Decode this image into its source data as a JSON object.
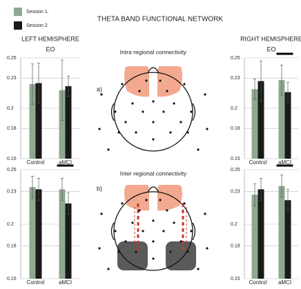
{
  "title": "THETA BAND FUNCTIONAL NETWORK",
  "panels": [
    {
      "label": "a)",
      "title": "Intra regional connectivity"
    },
    {
      "label": "b)",
      "title": "Inter regional connectivity"
    }
  ],
  "chart_data": [
    {
      "type": "bar",
      "title": "LEFT HEMISPHERE",
      "subtitle": "EO",
      "categories": [
        "Control",
        "aMCI"
      ],
      "series": [
        {
          "name": "Session 1.",
          "color": "#8fa88f",
          "values": [
            0.224,
            0.218
          ],
          "errors": [
            0.02,
            0.03
          ]
        },
        {
          "name": "Session 2.",
          "color": "#1a1a1a",
          "values": [
            0.225,
            0.222
          ],
          "errors": [
            0.02,
            0.01
          ]
        }
      ],
      "ylim": [
        0.15,
        0.25
      ],
      "yticks": [
        0.15,
        0.18,
        0.2,
        0.23,
        0.25
      ],
      "grid": true,
      "significance": [
        false,
        false
      ]
    },
    {
      "type": "bar",
      "title": "RIGHT HEMISPHERE",
      "subtitle": "EO",
      "categories": [
        "Control",
        "aMCI"
      ],
      "series": [
        {
          "color": "#8fa88f",
          "values": [
            0.219,
            0.228
          ],
          "errors": [
            0.01,
            0.015
          ]
        },
        {
          "color": "#1a1a1a",
          "values": [
            0.227,
            0.216
          ],
          "errors": [
            0.02,
            0.01
          ]
        }
      ],
      "ylim": [
        0.15,
        0.25
      ],
      "yticks": [
        0.15,
        0.18,
        0.2,
        0.23,
        0.25
      ],
      "grid": true,
      "significance": [
        false,
        true
      ]
    },
    {
      "type": "bar",
      "categories": [
        "Control",
        "aMCI"
      ],
      "series": [
        {
          "color": "#8fa88f",
          "values": [
            0.234,
            0.232
          ],
          "errors": [
            0.01,
            0.01
          ]
        },
        {
          "color": "#1a1a1a",
          "values": [
            0.232,
            0.219
          ],
          "errors": [
            0.01,
            0.01
          ]
        }
      ],
      "ylim": [
        0.15,
        0.25
      ],
      "yticks": [
        0.15,
        0.18,
        0.2,
        0.23,
        0.25
      ],
      "grid": true,
      "significance": [
        false,
        true
      ]
    },
    {
      "type": "bar",
      "categories": [
        "Control",
        "aMCI"
      ],
      "series": [
        {
          "color": "#8fa88f",
          "values": [
            0.227,
            0.235
          ],
          "errors": [
            0.01,
            0.01
          ]
        },
        {
          "color": "#1a1a1a",
          "values": [
            0.232,
            0.222
          ],
          "errors": [
            0.01,
            0.01
          ]
        }
      ],
      "ylim": [
        0.15,
        0.25
      ],
      "yticks": [
        0.15,
        0.18,
        0.2,
        0.23,
        0.25
      ],
      "grid": true,
      "significance": [
        false,
        true
      ]
    }
  ]
}
